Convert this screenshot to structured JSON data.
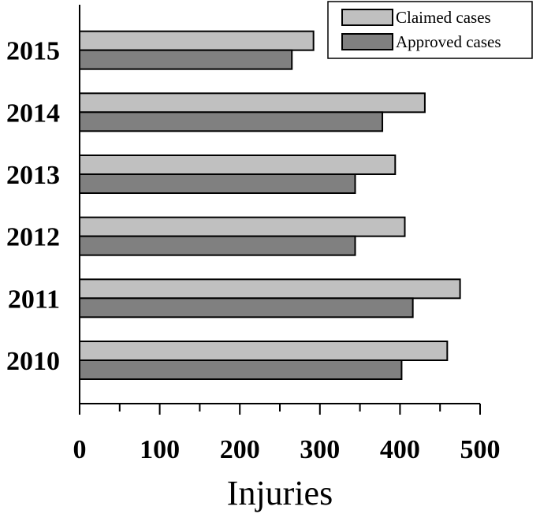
{
  "chart_data": {
    "type": "bar",
    "orientation": "horizontal",
    "categories": [
      "2010",
      "2011",
      "2012",
      "2013",
      "2014",
      "2015"
    ],
    "series": [
      {
        "name": "Claimed cases",
        "values": [
          459,
          475,
          406,
          394,
          431,
          292
        ]
      },
      {
        "name": "Approved cases",
        "values": [
          402,
          416,
          344,
          344,
          378,
          265
        ]
      }
    ],
    "xlabel": "Injuries",
    "ylabel": "",
    "xlim": [
      0,
      500
    ],
    "xticks": [
      "0",
      "100",
      "200",
      "300",
      "400",
      "500"
    ],
    "grid": false,
    "legend_position": "top-right",
    "colors": {
      "Claimed cases": "#c0c0c0",
      "Approved cases": "#808080"
    }
  }
}
